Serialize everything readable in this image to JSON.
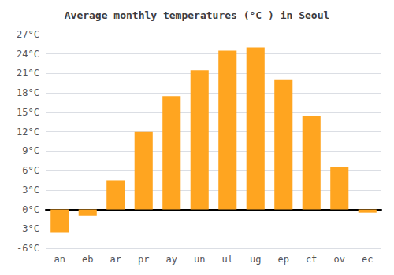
{
  "chart_data": {
    "type": "bar",
    "title": "Average monthly temperatures (°C ) in Seoul",
    "categories": [
      "an",
      "eb",
      "ar",
      "pr",
      "ay",
      "un",
      "ul",
      "ug",
      "ep",
      "ct",
      "ov",
      "ec"
    ],
    "values": [
      -3.5,
      -1.0,
      4.5,
      12.0,
      17.5,
      21.5,
      24.5,
      25.0,
      20.0,
      14.5,
      6.5,
      -0.5
    ],
    "color": "#FFA520",
    "ylim": [
      -6,
      27
    ],
    "yticks": [
      {
        "value": -6,
        "label": "-6°C"
      },
      {
        "value": -3,
        "label": "-3°C"
      },
      {
        "value": 0,
        "label": "0°C"
      },
      {
        "value": 3,
        "label": "3°C"
      },
      {
        "value": 6,
        "label": "6°C"
      },
      {
        "value": 9,
        "label": "9°C"
      },
      {
        "value": 12,
        "label": "12°C"
      },
      {
        "value": 15,
        "label": "15°C"
      },
      {
        "value": 18,
        "label": "18°C"
      },
      {
        "value": 21,
        "label": "21°C"
      },
      {
        "value": 24,
        "label": "24°C"
      },
      {
        "value": 27,
        "label": "27°C"
      }
    ],
    "grid": true
  }
}
